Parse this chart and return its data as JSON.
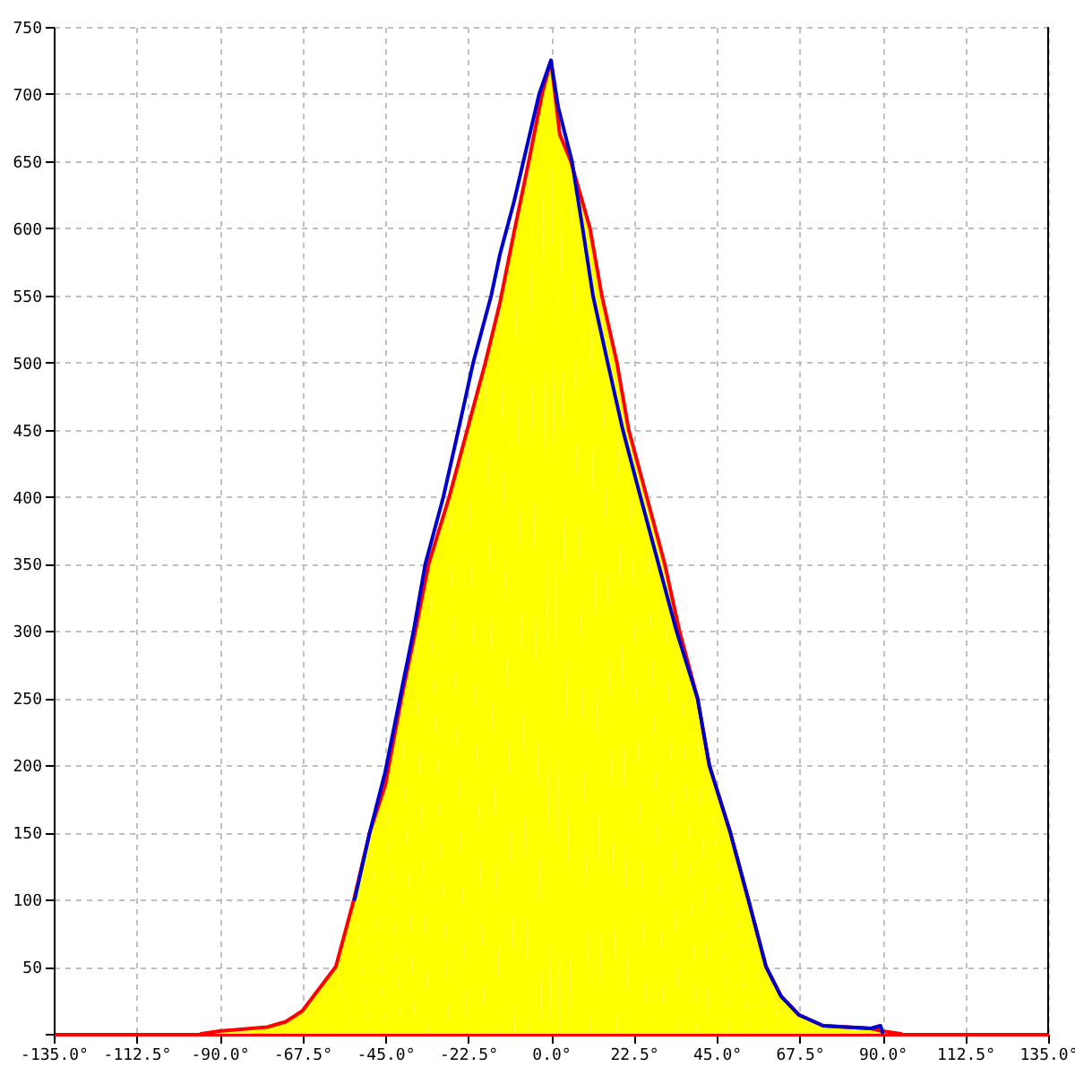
{
  "chart_data": {
    "type": "area",
    "xlim": [
      -135,
      135
    ],
    "xticks": [
      {
        "value": -135,
        "label": "-135.0°"
      },
      {
        "value": -112.5,
        "label": "-112.5°"
      },
      {
        "value": -90,
        "label": "-90.0°"
      },
      {
        "value": -67.5,
        "label": "-67.5°"
      },
      {
        "value": -45,
        "label": "-45.0°"
      },
      {
        "value": -22.5,
        "label": "-22.5°"
      },
      {
        "value": 0,
        "label": "0.0°"
      },
      {
        "value": 22.5,
        "label": "22.5°"
      },
      {
        "value": 45,
        "label": "45.0°"
      },
      {
        "value": 67.5,
        "label": "67.5°"
      },
      {
        "value": 90,
        "label": "90.0°"
      },
      {
        "value": 112.5,
        "label": "112.5°"
      },
      {
        "value": 135,
        "label": "135.0°"
      }
    ],
    "ylim": [
      0,
      750
    ],
    "yticks": [
      {
        "value": 0,
        "label": null
      },
      50,
      100,
      150,
      200,
      250,
      300,
      350,
      400,
      450,
      500,
      550,
      600,
      650,
      700,
      750
    ],
    "grid": true,
    "series": [
      {
        "color": "#ffff00",
        "x": [
          -95,
          -90,
          -77,
          -72,
          -67.5,
          -58.4,
          -53.5,
          -49.2,
          -45,
          -40.6,
          -36.8,
          -33.2,
          -27.6,
          -22.7,
          -17.8,
          -13.8,
          -9.8,
          -6,
          -2.4,
          0,
          2.4,
          5.4,
          10.6,
          13.8,
          17.9,
          21.1,
          26,
          30.9,
          34.9,
          39.8,
          43,
          48.7,
          53.6,
          58.4,
          62.5,
          67.4,
          73.9,
          80.3,
          86.8,
          90,
          95
        ],
        "values": [
          0,
          2,
          5,
          9,
          17,
          50,
          100,
          150,
          185,
          250,
          300,
          350,
          400,
          450,
          500,
          545,
          600,
          650,
          700,
          725,
          670,
          650,
          600,
          550,
          500,
          450,
          400,
          350,
          300,
          250,
          200,
          150,
          100,
          50,
          28,
          14,
          6,
          5,
          4,
          2,
          0
        ]
      },
      {
        "type": "line",
        "color": "#0000cc",
        "x": [
          -53.3,
          -49.2,
          -45,
          -41,
          -37.3,
          -34.1,
          -29.2,
          -25.1,
          -21.1,
          -16.2,
          -13.8,
          -10,
          -3.2,
          0,
          2,
          5.7,
          8.6,
          11.4,
          15.4,
          19.5,
          24.3,
          29.2,
          34.1,
          39.8,
          43,
          48.7,
          53.6,
          58.4,
          62.5,
          67.4,
          73.9,
          80.3,
          86.8,
          89.5,
          90
        ],
        "values": [
          100,
          150,
          195,
          250,
          300,
          350,
          400,
          450,
          500,
          550,
          581,
          620,
          700,
          725,
          690,
          650,
          600,
          550,
          500,
          450,
          400,
          350,
          300,
          250,
          200,
          150,
          100,
          50,
          28,
          14,
          6,
          5,
          4,
          6,
          1
        ]
      }
    ]
  }
}
